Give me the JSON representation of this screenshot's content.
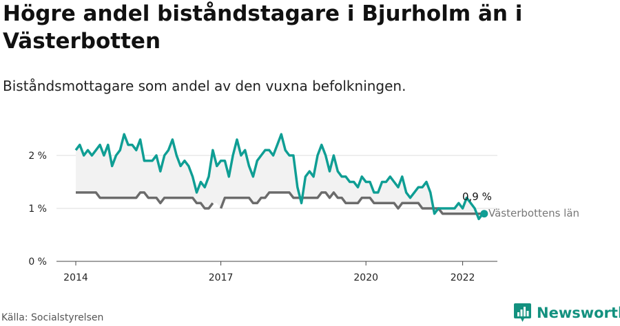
{
  "title": "Högre andel biståndstagare i Bjurholm än i Västerbotten",
  "subtitle": "Biståndsmottagare som andel av den vuxna befolkningen.",
  "source": "Källa: Socialstyrelsen",
  "brand": "Newsworthy",
  "icon": "newsworthy-logo-icon",
  "colors": {
    "bjurholm": "#0f9e94",
    "vasterbotten": "#6b6b6b",
    "band": "#f2f2f2",
    "grid": "#dddddd",
    "brand": "#13917f"
  },
  "chart_data": {
    "type": "line",
    "x_start": "2014-01",
    "x_step": "month",
    "xticks": [
      2014,
      2017,
      2020,
      2022
    ],
    "xtick_labels": [
      "2014",
      "2017",
      "2020",
      "2022"
    ],
    "yticks": [
      0,
      1,
      2
    ],
    "ytick_labels": [
      "0 %",
      "1 %",
      "2 %"
    ],
    "ylim": [
      0,
      2.5
    ],
    "grid": "horizontal",
    "series": [
      {
        "name": "",
        "end_label": "0,9 %",
        "values": [
          2.1,
          2.2,
          2.0,
          2.1,
          2.0,
          2.1,
          2.2,
          2.0,
          2.2,
          1.8,
          2.0,
          2.1,
          2.4,
          2.2,
          2.2,
          2.1,
          2.3,
          1.9,
          1.9,
          1.9,
          2.0,
          1.7,
          2.0,
          2.1,
          2.3,
          2.0,
          1.8,
          1.9,
          1.8,
          1.6,
          1.3,
          1.5,
          1.4,
          1.6,
          2.1,
          1.8,
          1.9,
          1.9,
          1.6,
          2.0,
          2.3,
          2.0,
          2.1,
          1.8,
          1.6,
          1.9,
          2.0,
          2.1,
          2.1,
          2.0,
          2.2,
          2.4,
          2.1,
          2.0,
          2.0,
          1.4,
          1.1,
          1.6,
          1.7,
          1.6,
          2.0,
          2.2,
          2.0,
          1.7,
          2.0,
          1.7,
          1.6,
          1.6,
          1.5,
          1.5,
          1.4,
          1.6,
          1.5,
          1.5,
          1.3,
          1.3,
          1.5,
          1.5,
          1.6,
          1.5,
          1.4,
          1.6,
          1.3,
          1.2,
          1.3,
          1.4,
          1.4,
          1.5,
          1.3,
          0.9,
          1.0,
          1.0,
          1.0,
          1.0,
          1.0,
          1.1,
          1.0,
          1.2,
          1.1,
          1.0,
          0.8,
          0.9
        ]
      },
      {
        "name": "Västerbottens län",
        "values": [
          1.3,
          1.3,
          1.3,
          1.3,
          1.3,
          1.3,
          1.2,
          1.2,
          1.2,
          1.2,
          1.2,
          1.2,
          1.2,
          1.2,
          1.2,
          1.2,
          1.3,
          1.3,
          1.2,
          1.2,
          1.2,
          1.1,
          1.2,
          1.2,
          1.2,
          1.2,
          1.2,
          1.2,
          1.2,
          1.2,
          1.1,
          1.1,
          1.0,
          1.0,
          1.1,
          null,
          1.0,
          1.2,
          1.2,
          1.2,
          1.2,
          1.2,
          1.2,
          1.2,
          1.1,
          1.1,
          1.2,
          1.2,
          1.3,
          1.3,
          1.3,
          1.3,
          1.3,
          1.3,
          1.2,
          1.2,
          1.2,
          1.2,
          1.2,
          1.2,
          1.2,
          1.3,
          1.3,
          1.2,
          1.3,
          1.2,
          1.2,
          1.1,
          1.1,
          1.1,
          1.1,
          1.2,
          1.2,
          1.2,
          1.1,
          1.1,
          1.1,
          1.1,
          1.1,
          1.1,
          1.0,
          1.1,
          1.1,
          1.1,
          1.1,
          1.1,
          1.0,
          1.0,
          1.0,
          1.0,
          1.0,
          0.9,
          0.9,
          0.9,
          0.9,
          0.9,
          0.9,
          0.9,
          0.9,
          0.9,
          0.9,
          0.9
        ]
      }
    ]
  }
}
